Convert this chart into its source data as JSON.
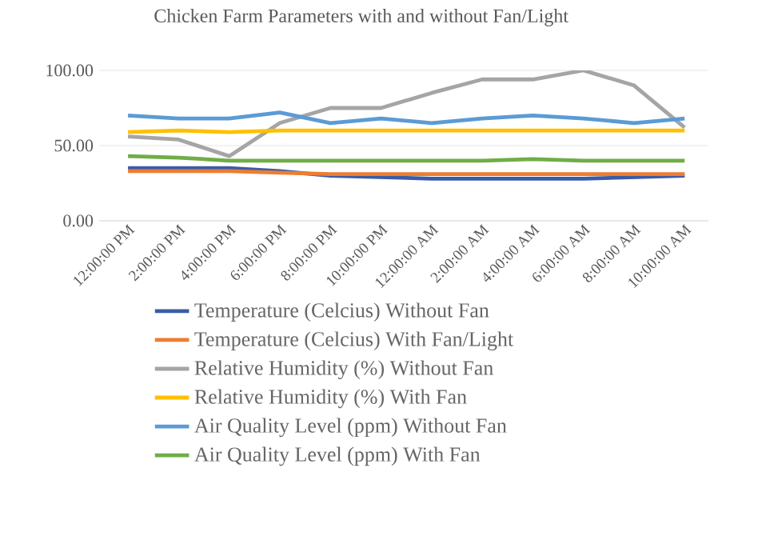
{
  "chart_data": {
    "type": "line",
    "title": "Chicken Farm Parameters with and without Fan/Light",
    "categories": [
      "12:00:00 PM",
      "2:00:00 PM",
      "4:00:00 PM",
      "6:00:00 PM",
      "8:00:00 PM",
      "10:00:00 PM",
      "12:00:00 AM",
      "2:00:00 AM",
      "4:00:00 AM",
      "6:00:00 AM",
      "8:00:00 AM",
      "10:00:00 AM"
    ],
    "series": [
      {
        "name": "Temperature (Celcius) Without Fan",
        "color": "#3a5ca8",
        "values": [
          35,
          35,
          35,
          33,
          30,
          29,
          28,
          28,
          28,
          28,
          29,
          30
        ]
      },
      {
        "name": "Temperature (Celcius) With Fan/Light",
        "color": "#ed7d31",
        "values": [
          33,
          33,
          33,
          32,
          31,
          31,
          31,
          31,
          31,
          31,
          31,
          31
        ]
      },
      {
        "name": "Relative Humidity (%) Without Fan",
        "color": "#a5a5a5",
        "values": [
          56,
          54,
          43,
          65,
          75,
          75,
          85,
          94,
          94,
          100,
          90,
          62
        ]
      },
      {
        "name": "Relative Humidity (%) With Fan",
        "color": "#ffc000",
        "values": [
          59,
          60,
          59,
          60,
          60,
          60,
          60,
          60,
          60,
          60,
          60,
          60
        ]
      },
      {
        "name": "Air Quality Level (ppm) Without Fan",
        "color": "#5b9bd5",
        "values": [
          70,
          68,
          68,
          72,
          65,
          68,
          65,
          68,
          70,
          68,
          65,
          68
        ]
      },
      {
        "name": "Air Quality Level (ppm) With Fan",
        "color": "#70ad47",
        "values": [
          43,
          42,
          40,
          40,
          40,
          40,
          40,
          40,
          41,
          40,
          40,
          40
        ]
      }
    ],
    "ylim": [
      0,
      100
    ],
    "yticks": [
      {
        "value": 0,
        "label": "0.00"
      },
      {
        "value": 50,
        "label": "50.00"
      },
      {
        "value": 100,
        "label": "100.00"
      }
    ],
    "grid": "y",
    "legend": "bottom",
    "marker": "none",
    "line_style": "solid"
  }
}
